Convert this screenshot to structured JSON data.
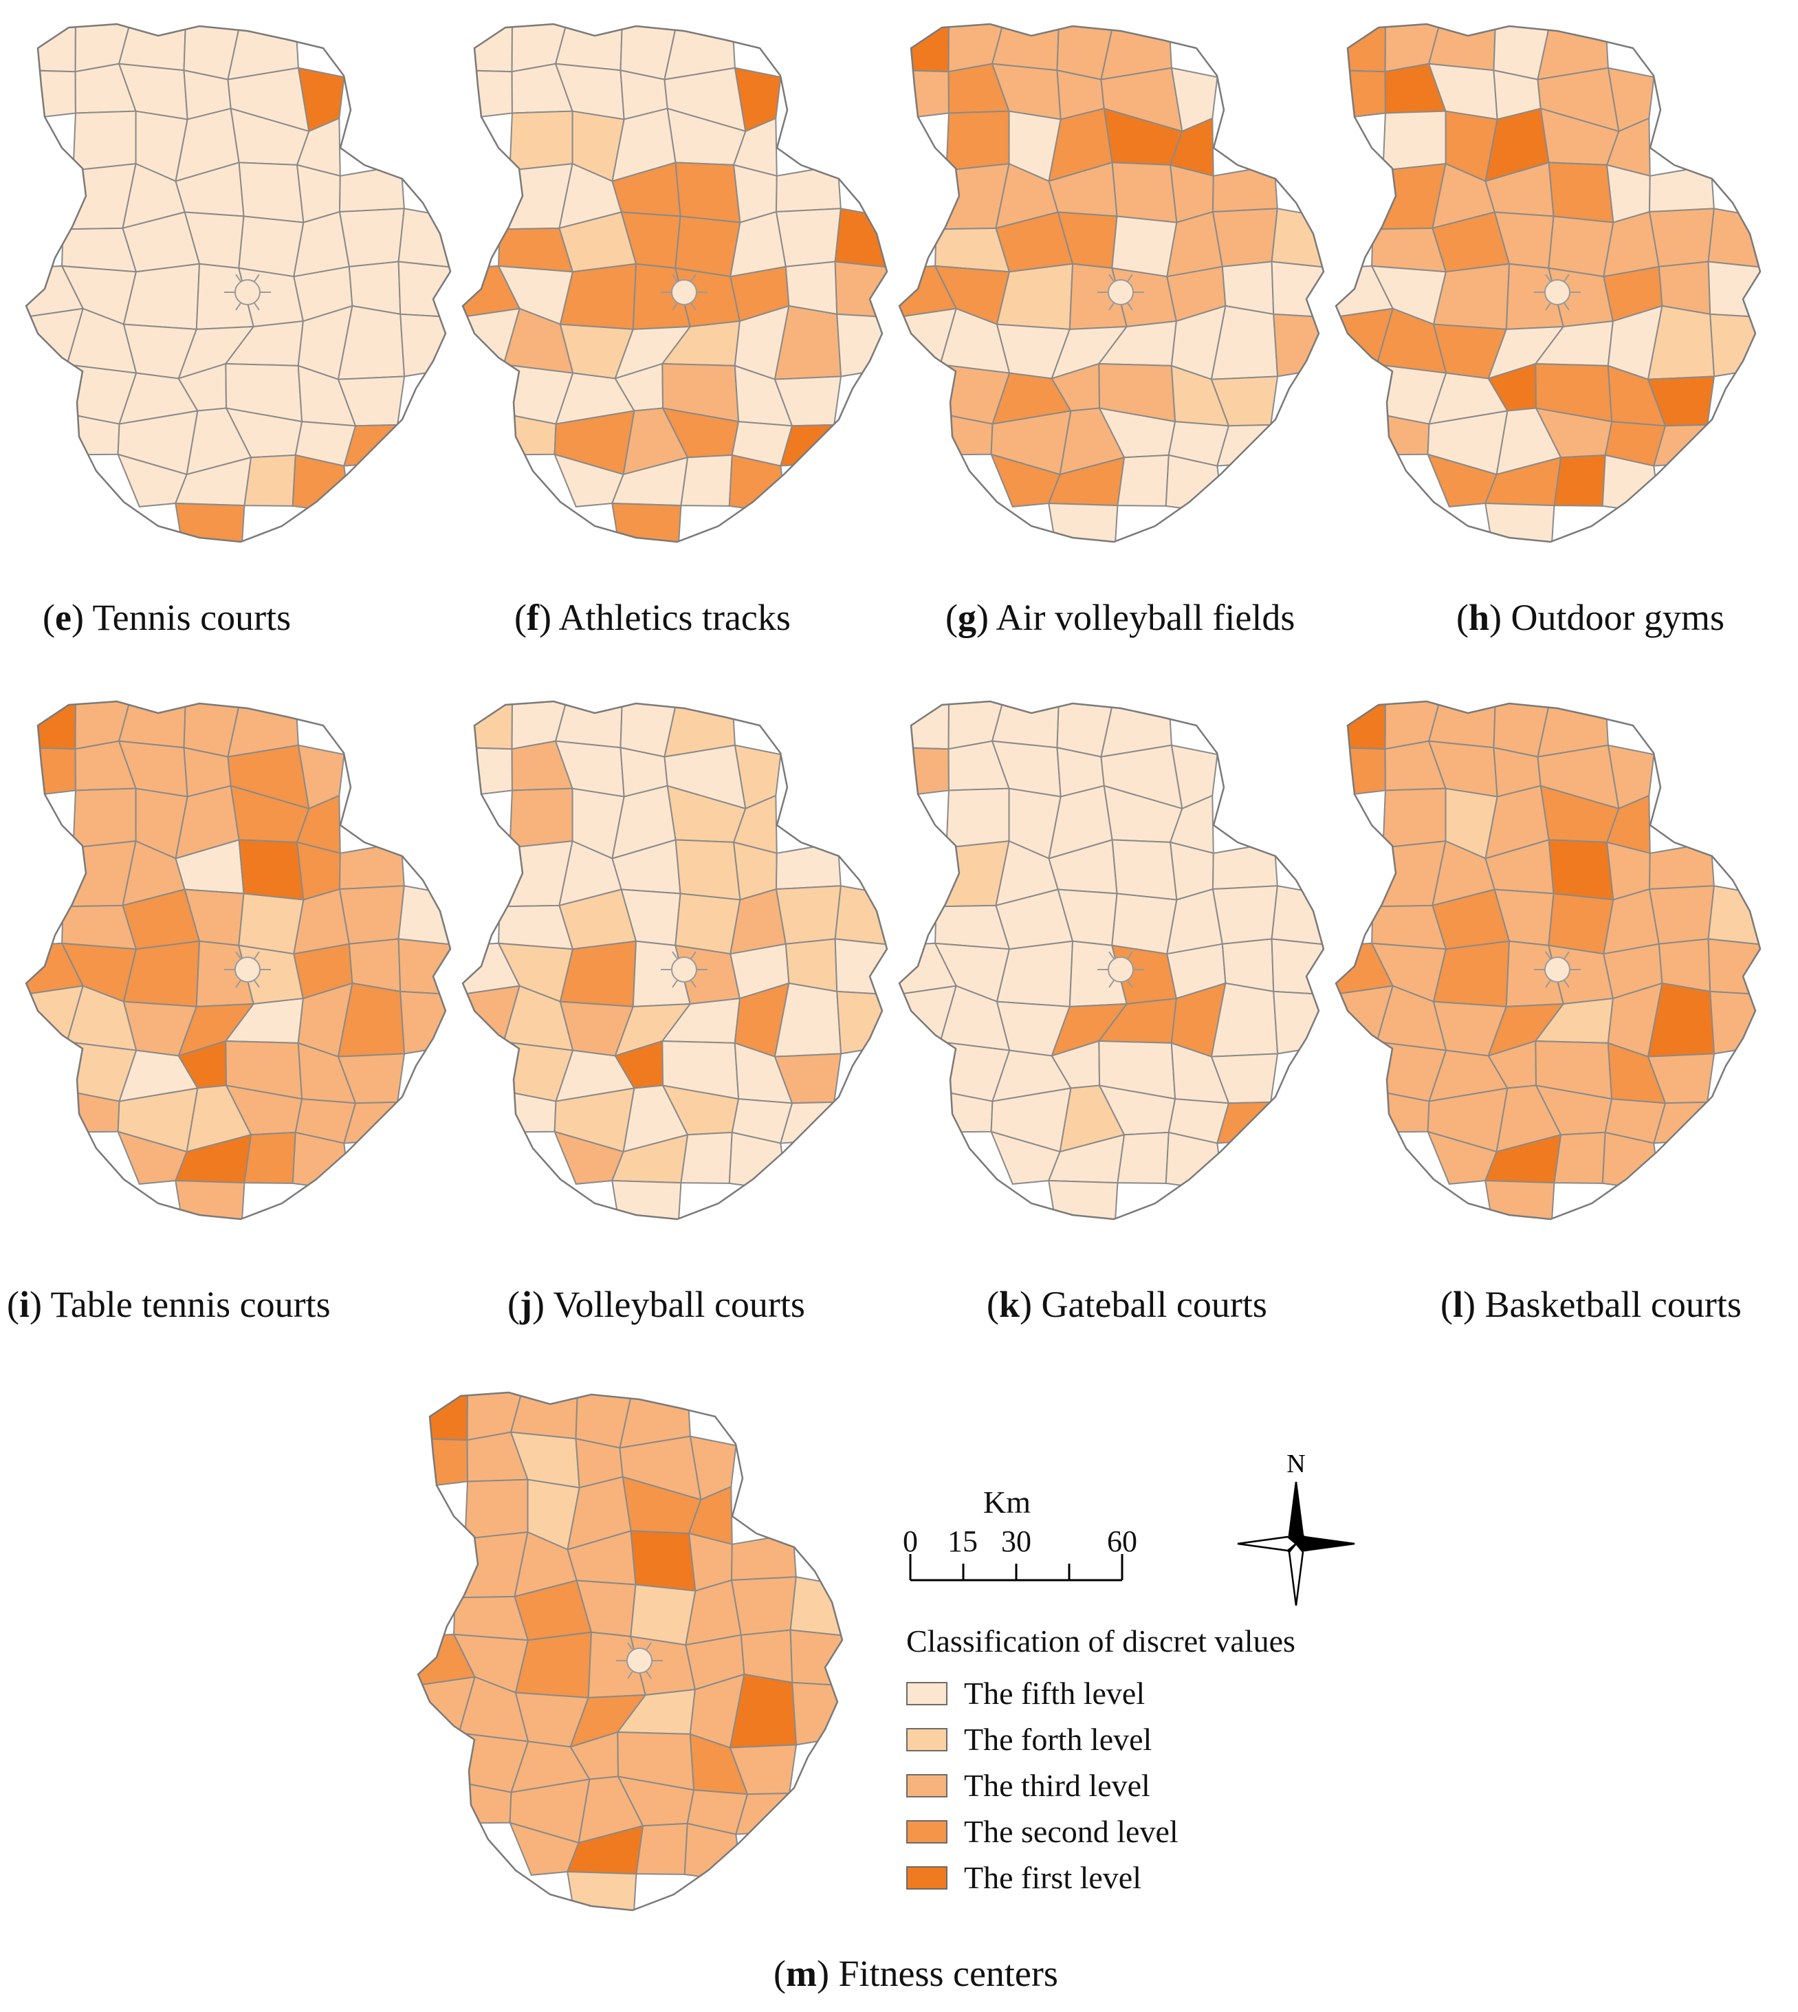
{
  "colors": {
    "level1": "#f07a1f",
    "level2": "#f49549",
    "level3": "#f7b37b",
    "level4": "#fbd0a3",
    "level5": "#fde6cf",
    "boundary": "#8a8a8a"
  },
  "panels": [
    {
      "letter": "e",
      "title": "Tennis courts",
      "pattern": [
        5,
        5,
        5,
        5,
        5,
        5,
        5,
        5,
        5,
        5,
        1,
        5,
        5,
        5,
        5,
        5,
        5,
        5,
        5,
        5,
        5,
        5,
        5,
        5,
        5,
        5,
        5,
        5,
        5,
        5,
        5,
        5,
        5,
        5,
        5,
        5,
        5,
        5,
        5,
        5,
        5,
        5,
        5,
        5,
        5,
        5,
        5,
        5,
        5,
        5,
        5,
        5,
        5,
        5,
        5,
        5,
        2,
        5,
        5,
        4,
        2,
        2,
        5,
        5,
        1,
        5,
        5,
        5,
        5,
        5,
        5,
        5,
        5,
        5,
        5,
        5,
        5,
        5,
        5,
        5,
        5,
        5,
        5
      ]
    },
    {
      "letter": "f",
      "title": "Athletics tracks",
      "pattern": [
        5,
        5,
        5,
        5,
        5,
        5,
        5,
        5,
        5,
        5,
        1,
        4,
        4,
        5,
        5,
        5,
        5,
        5,
        2,
        2,
        5,
        5,
        2,
        4,
        2,
        2,
        5,
        5,
        1,
        2,
        5,
        2,
        2,
        2,
        2,
        5,
        3,
        5,
        3,
        4,
        5,
        4,
        5,
        3,
        5,
        5,
        5,
        5,
        3,
        5,
        5,
        4,
        2,
        3,
        2,
        5,
        1,
        5,
        5,
        5,
        2,
        2,
        2,
        3,
        2,
        2,
        3,
        5,
        5,
        5,
        5,
        5,
        5,
        3,
        5,
        5,
        4,
        5,
        5,
        5,
        5,
        3,
        5,
        5
      ]
    },
    {
      "letter": "g",
      "title": "Air volleyball fields",
      "pattern": [
        1,
        3,
        3,
        3,
        3,
        3,
        2,
        3,
        3,
        3,
        5,
        2,
        5,
        2,
        1,
        1,
        3,
        3,
        3,
        3,
        3,
        3,
        4,
        2,
        2,
        5,
        3,
        3,
        4,
        2,
        2,
        4,
        3,
        3,
        3,
        5,
        5,
        5,
        5,
        5,
        5,
        5,
        5,
        5,
        3,
        3,
        2,
        3,
        3,
        4,
        4,
        3,
        3,
        3,
        5,
        5,
        5,
        2,
        2,
        5,
        5,
        5,
        3,
        2,
        3,
        4,
        5,
        4,
        5,
        5,
        5,
        5,
        5,
        5,
        4,
        5,
        5,
        5,
        5,
        5,
        5,
        4,
        4,
        5,
        5
      ]
    },
    {
      "letter": "h",
      "title": "Outdoor gyms",
      "pattern": [
        2,
        3,
        3,
        5,
        3,
        2,
        1,
        5,
        5,
        3,
        3,
        5,
        2,
        1,
        3,
        3,
        2,
        3,
        3,
        2,
        5,
        5,
        3,
        2,
        3,
        3,
        3,
        3,
        3,
        5,
        5,
        3,
        3,
        3,
        2,
        3,
        5,
        2,
        2,
        2,
        5,
        5,
        5,
        4,
        4,
        5,
        5,
        1,
        2,
        2,
        1,
        3,
        5,
        5,
        3,
        2,
        3,
        2,
        2,
        1,
        5,
        5,
        4,
        4,
        5,
        4,
        3,
        2,
        1,
        5,
        5,
        4,
        4,
        4,
        5,
        5,
        5,
        5,
        5,
        5,
        5,
        5,
        5
      ]
    },
    {
      "letter": "i",
      "title": "Table tennis courts",
      "pattern": [
        1,
        3,
        3,
        3,
        3,
        2,
        3,
        3,
        3,
        2,
        3,
        3,
        3,
        3,
        2,
        2,
        3,
        3,
        5,
        1,
        2,
        3,
        3,
        2,
        3,
        4,
        3,
        3,
        5,
        2,
        2,
        2,
        3,
        4,
        2,
        3,
        3,
        4,
        4,
        3,
        2,
        5,
        3,
        2,
        3,
        4,
        5,
        1,
        3,
        3,
        3,
        3,
        4,
        4,
        3,
        3,
        3,
        3,
        1,
        2,
        3,
        3,
        3,
        3,
        3,
        3,
        3,
        2,
        3,
        3,
        3,
        2,
        2,
        3,
        3,
        3,
        3,
        3,
        2,
        3,
        3,
        3,
        3
      ]
    },
    {
      "letter": "j",
      "title": "Volleyball courts",
      "pattern": [
        4,
        5,
        5,
        5,
        4,
        5,
        3,
        5,
        5,
        5,
        4,
        3,
        5,
        5,
        4,
        4,
        5,
        5,
        5,
        4,
        4,
        5,
        5,
        4,
        5,
        4,
        3,
        4,
        4,
        5,
        4,
        2,
        5,
        3,
        5,
        4,
        5,
        3,
        4,
        3,
        4,
        5,
        2,
        5,
        4,
        4,
        5,
        1,
        5,
        5,
        3,
        5,
        4,
        5,
        4,
        5,
        5,
        3,
        4,
        5,
        5,
        5,
        5,
        4,
        5,
        5,
        3,
        4,
        5,
        5,
        5,
        5,
        4,
        2,
        5,
        5,
        5,
        5,
        5,
        5,
        5,
        5,
        5
      ]
    },
    {
      "letter": "k",
      "title": "Gateball courts",
      "pattern": [
        5,
        5,
        5,
        5,
        5,
        3,
        5,
        5,
        5,
        5,
        5,
        5,
        5,
        5,
        5,
        5,
        4,
        5,
        5,
        5,
        5,
        5,
        5,
        5,
        5,
        5,
        5,
        5,
        5,
        5,
        5,
        5,
        5,
        2,
        5,
        5,
        5,
        5,
        5,
        5,
        2,
        2,
        2,
        5,
        5,
        5,
        5,
        5,
        5,
        5,
        5,
        5,
        5,
        4,
        5,
        5,
        2,
        5,
        5,
        5,
        5,
        5,
        5,
        5,
        5,
        5,
        5,
        5,
        5,
        5,
        5,
        5,
        5,
        5,
        5,
        5,
        5,
        5,
        5,
        5,
        5,
        5,
        5
      ]
    },
    {
      "letter": "l",
      "title": "Basketball courts",
      "pattern": [
        1,
        3,
        3,
        3,
        3,
        2,
        3,
        3,
        3,
        3,
        3,
        3,
        4,
        3,
        2,
        2,
        3,
        3,
        3,
        1,
        3,
        3,
        3,
        2,
        3,
        2,
        3,
        3,
        4,
        2,
        3,
        2,
        3,
        3,
        3,
        3,
        3,
        3,
        3,
        3,
        2,
        4,
        3,
        1,
        3,
        3,
        3,
        3,
        3,
        2,
        3,
        3,
        3,
        3,
        3,
        3,
        3,
        3,
        1,
        3,
        3,
        3,
        3,
        3,
        3,
        3,
        3,
        3,
        3,
        3,
        3,
        3,
        3,
        3,
        3,
        3,
        3,
        3,
        3,
        3,
        3,
        3,
        3
      ]
    },
    {
      "letter": "m",
      "title": "Fitness centers",
      "pattern": [
        1,
        3,
        3,
        3,
        3,
        2,
        3,
        4,
        3,
        3,
        3,
        3,
        4,
        3,
        2,
        2,
        3,
        3,
        3,
        1,
        3,
        3,
        3,
        2,
        3,
        4,
        3,
        3,
        4,
        2,
        3,
        2,
        3,
        3,
        3,
        3,
        3,
        3,
        3,
        3,
        2,
        4,
        3,
        1,
        3,
        3,
        3,
        3,
        3,
        2,
        3,
        3,
        3,
        3,
        3,
        3,
        3,
        3,
        1,
        3,
        3,
        4,
        3,
        3,
        3,
        3,
        3,
        3,
        3,
        3,
        3,
        3,
        3,
        2,
        3,
        3,
        3,
        3,
        3,
        3,
        3,
        3,
        3
      ]
    }
  ],
  "scale": {
    "unit": "Km",
    "ticks": [
      "0",
      "15",
      "30",
      "60"
    ],
    "tick_values": [
      0,
      15,
      30,
      45,
      60
    ]
  },
  "north_label": "N",
  "legend": {
    "title": "Classification of discret values",
    "items": [
      {
        "label": "The fifth level",
        "level": 5
      },
      {
        "label": "The forth level",
        "level": 4
      },
      {
        "label": "The third level",
        "level": 3
      },
      {
        "label": "The second level",
        "level": 2
      },
      {
        "label": "The first level",
        "level": 1
      }
    ]
  }
}
